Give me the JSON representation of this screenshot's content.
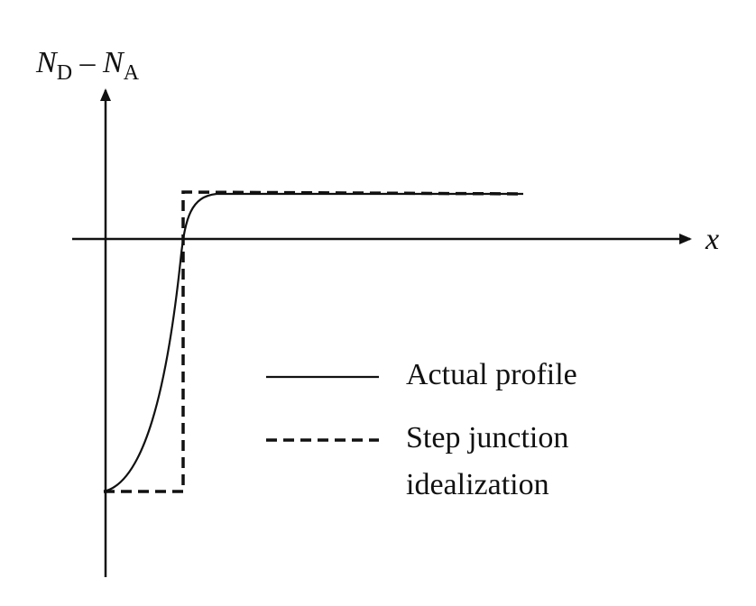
{
  "axes": {
    "y_label": {
      "n1": "N",
      "sub1": "D",
      "op": " – ",
      "n2": "N",
      "sub2": "A"
    },
    "x_label": "x"
  },
  "legend": {
    "items": [
      {
        "label": "Actual profile"
      },
      {
        "label_lines": [
          "Step junction",
          "idealization"
        ]
      }
    ]
  }
}
